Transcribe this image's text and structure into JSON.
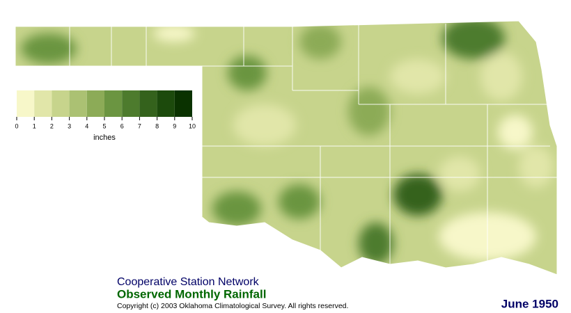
{
  "legend": {
    "colors": [
      "#f7f7c9",
      "#e1e6a9",
      "#c7d48c",
      "#abc173",
      "#8cab57",
      "#6b9541",
      "#4d7b2d",
      "#34621c",
      "#1c4a0c",
      "#0a3200"
    ],
    "ticks": [
      0,
      1,
      2,
      3,
      4,
      5,
      6,
      7,
      8,
      9,
      10
    ],
    "unit": "inches"
  },
  "network": "Cooperative Station Network",
  "title": "Observed Monthly Rainfall",
  "copyright": "Copyright (c) 2003 Oklahoma Climatological Survey. All rights reserved.",
  "date": "June 1950"
}
